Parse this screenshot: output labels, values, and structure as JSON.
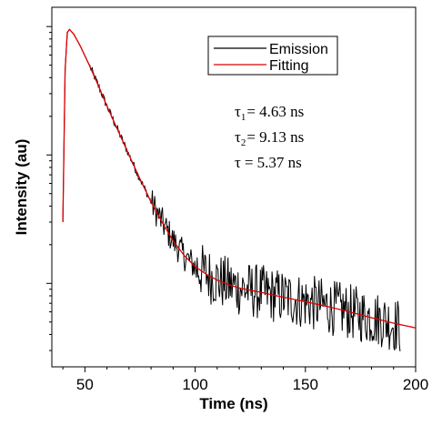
{
  "chart_data": {
    "type": "line",
    "title": "",
    "xlabel": "Time (ns)",
    "ylabel": "Intensity (au)",
    "xlim": [
      35,
      200
    ],
    "x_ticks": [
      50,
      100,
      150,
      200
    ],
    "x_tick_labels": [
      "50",
      "100",
      "150",
      "200"
    ],
    "y_scale": "log",
    "y_tick_labels_shown": false,
    "grid": false,
    "legend_position": "top-right",
    "series": [
      {
        "name": "Emission",
        "color": "#000000",
        "x": [
          40,
          41,
          42,
          43,
          45,
          48,
          52,
          56,
          60,
          65,
          70,
          75,
          80,
          85,
          90,
          95,
          100,
          105,
          110,
          115,
          120,
          130,
          140,
          150,
          160,
          170,
          180,
          185,
          193
        ],
        "y": [
          300,
          4500,
          9000,
          9500,
          8700,
          7000,
          5000,
          3500,
          2400,
          1550,
          1000,
          650,
          430,
          300,
          215,
          165,
          135,
          118,
          106,
          98,
          92,
          85,
          78,
          72,
          66,
          60,
          54,
          52,
          46
        ],
        "noisy": true
      },
      {
        "name": "Fitting",
        "color": "#dd0000",
        "x": [
          40,
          41,
          42,
          43,
          45,
          48,
          52,
          56,
          60,
          65,
          70,
          75,
          80,
          85,
          90,
          95,
          100,
          105,
          110,
          115,
          120,
          130,
          140,
          150,
          160,
          170,
          180,
          190,
          200
        ],
        "y": [
          300,
          4500,
          9000,
          9500,
          8700,
          7000,
          5000,
          3500,
          2400,
          1550,
          1000,
          650,
          430,
          300,
          215,
          165,
          135,
          118,
          106,
          98,
          92,
          85,
          78,
          72,
          66,
          60,
          54,
          49,
          45
        ]
      }
    ],
    "annotations": [
      {
        "symbol": "τ",
        "sub": "1",
        "text": "= 4.63 ns"
      },
      {
        "symbol": "τ",
        "sub": "2",
        "text": "= 9.13 ns"
      },
      {
        "symbol": "τ",
        "sub": "",
        "text": "= 5.37 ns"
      }
    ]
  }
}
